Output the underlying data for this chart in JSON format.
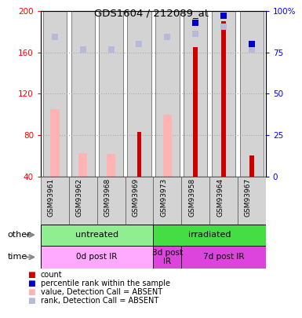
{
  "title": "GDS1604 / 212089_at",
  "samples": [
    "GSM93961",
    "GSM93962",
    "GSM93968",
    "GSM93969",
    "GSM93973",
    "GSM93958",
    "GSM93964",
    "GSM93967"
  ],
  "count_dark": [
    null,
    null,
    null,
    83,
    null,
    165,
    190,
    60
  ],
  "value_absent": [
    105,
    63,
    62,
    null,
    100,
    null,
    null,
    null
  ],
  "rank_absent_left": [
    175,
    163,
    163,
    168,
    175,
    178,
    185,
    163
  ],
  "percentile_rank_right": [
    null,
    null,
    null,
    null,
    null,
    93,
    97,
    80
  ],
  "ylim_left": [
    40,
    200
  ],
  "ylim_right": [
    0,
    100
  ],
  "left_ticks": [
    40,
    80,
    120,
    160,
    200
  ],
  "right_ticks": [
    0,
    25,
    50,
    75,
    100
  ],
  "other_groups": [
    {
      "label": "untreated",
      "start": 0,
      "end": 4,
      "color": "#90ee90"
    },
    {
      "label": "irradiated",
      "start": 4,
      "end": 8,
      "color": "#44dd44"
    }
  ],
  "time_groups": [
    {
      "label": "0d post IR",
      "start": 0,
      "end": 4,
      "color": "#ffaaff"
    },
    {
      "label": "3d post\nIR",
      "start": 4,
      "end": 5,
      "color": "#dd44dd"
    },
    {
      "label": "7d post IR",
      "start": 5,
      "end": 8,
      "color": "#dd44dd"
    }
  ],
  "bar_bg_color": "#d3d3d3",
  "count_color": "#cc0000",
  "absent_value_color": "#ffb3b3",
  "absent_rank_color": "#b8b8d8",
  "percentile_color": "#0000cc",
  "grid_color": "#aaaaaa",
  "legend_items": [
    {
      "color": "#cc0000",
      "label": "count"
    },
    {
      "color": "#0000cc",
      "label": "percentile rank within the sample"
    },
    {
      "color": "#ffb3b3",
      "label": "value, Detection Call = ABSENT"
    },
    {
      "color": "#b8b8d8",
      "label": "rank, Detection Call = ABSENT"
    }
  ]
}
